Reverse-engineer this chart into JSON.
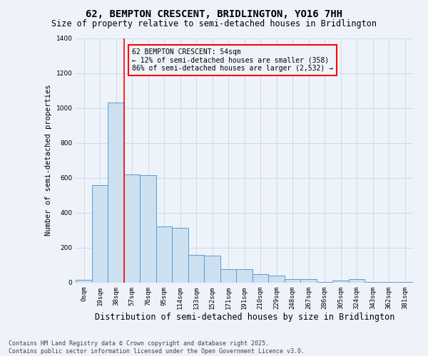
{
  "title": "62, BEMPTON CRESCENT, BRIDLINGTON, YO16 7HH",
  "subtitle": "Size of property relative to semi-detached houses in Bridlington",
  "xlabel": "Distribution of semi-detached houses by size in Bridlington",
  "ylabel": "Number of semi-detached properties",
  "bin_labels": [
    "0sqm",
    "19sqm",
    "38sqm",
    "57sqm",
    "76sqm",
    "95sqm",
    "114sqm",
    "133sqm",
    "152sqm",
    "171sqm",
    "191sqm",
    "210sqm",
    "229sqm",
    "248sqm",
    "267sqm",
    "286sqm",
    "305sqm",
    "324sqm",
    "343sqm",
    "362sqm",
    "381sqm"
  ],
  "bar_values": [
    15,
    560,
    1030,
    620,
    615,
    320,
    315,
    160,
    155,
    75,
    75,
    50,
    40,
    20,
    18,
    5,
    10,
    20,
    5,
    3,
    2
  ],
  "bar_color": "#cce0f0",
  "bar_edge_color": "#5b9bd5",
  "vline_x_index": 2.5,
  "vline_color": "red",
  "annotation_text": "62 BEMPTON CRESCENT: 54sqm\n← 12% of semi-detached houses are smaller (358)\n86% of semi-detached houses are larger (2,532) →",
  "box_color": "red",
  "ylim": [
    0,
    1400
  ],
  "yticks": [
    0,
    200,
    400,
    600,
    800,
    1000,
    1200,
    1400
  ],
  "footer_text": "Contains HM Land Registry data © Crown copyright and database right 2025.\nContains public sector information licensed under the Open Government Licence v3.0.",
  "bg_color": "#eef3fa",
  "title_fontsize": 10,
  "subtitle_fontsize": 8.5,
  "axis_xlabel_fontsize": 8.5,
  "axis_ylabel_fontsize": 7.5,
  "tick_fontsize": 6.5,
  "annotation_fontsize": 7,
  "footer_fontsize": 6
}
